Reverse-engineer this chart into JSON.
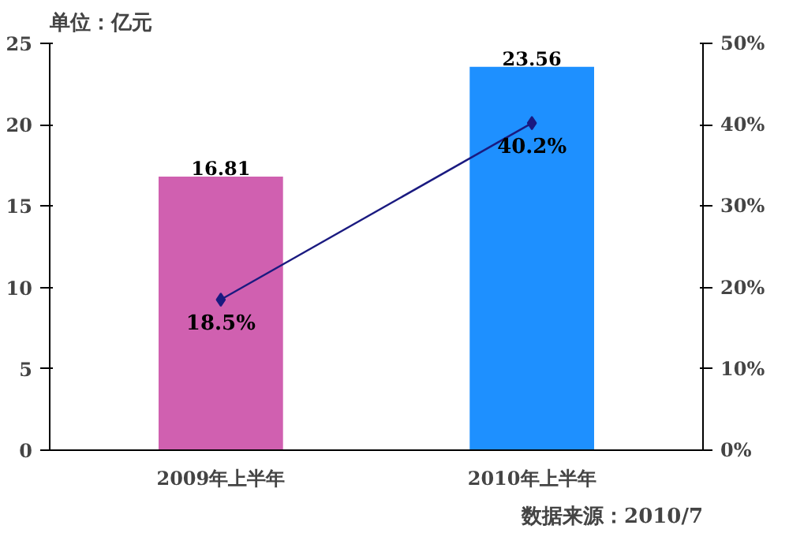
{
  "chart_data": {
    "type": "bar",
    "ylabel": "单位：亿元",
    "categories": [
      "2009年上半年",
      "2010年上半年"
    ],
    "ylim": [
      0,
      25
    ],
    "yticks": [
      0,
      5,
      10,
      15,
      20,
      25
    ],
    "y2lim": [
      0,
      50
    ],
    "y2ticks": [
      {
        "value": 0,
        "label": "0%"
      },
      {
        "value": 10,
        "label": "10%"
      },
      {
        "value": 20,
        "label": "20%"
      },
      {
        "value": 30,
        "label": "30%"
      },
      {
        "value": 40,
        "label": "40%"
      },
      {
        "value": 50,
        "label": "50%"
      }
    ],
    "series": [
      {
        "colors": [
          "#d060b0",
          "#1e90ff"
        ],
        "values": [
          16.81,
          23.56
        ],
        "value_labels": [
          "16.81",
          "23.56"
        ]
      },
      {
        "type": "line",
        "axis": "y2",
        "color": "#1a1a80",
        "marker": "diamond",
        "values": [
          18.5,
          40.2
        ],
        "value_labels": [
          "18.5%",
          "40.2%"
        ]
      }
    ],
    "grid": false,
    "annotations": [
      "数据来源：2010/7"
    ]
  }
}
